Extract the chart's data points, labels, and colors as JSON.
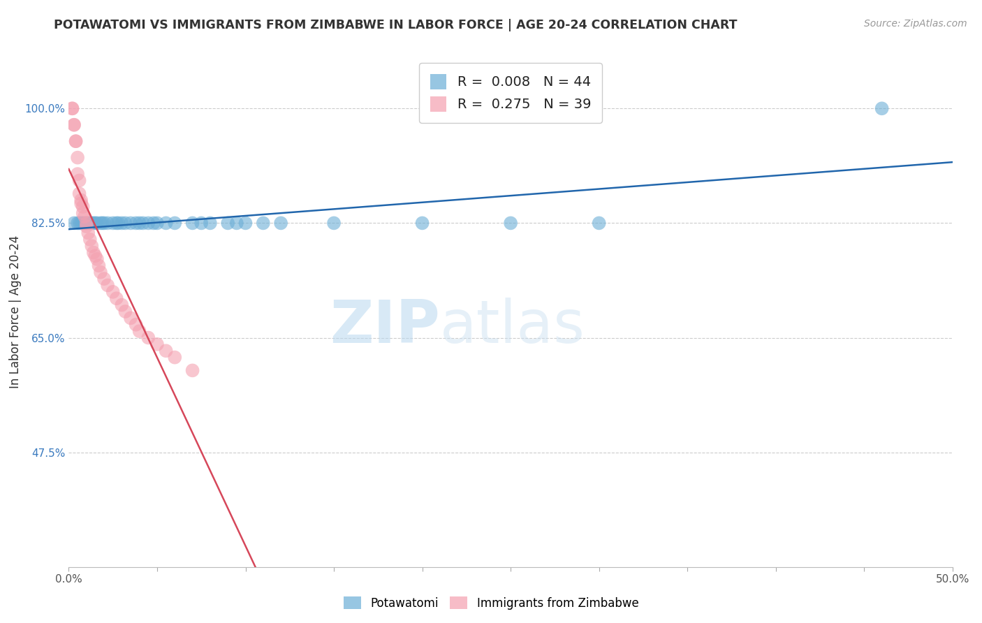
{
  "title": "POTAWATOMI VS IMMIGRANTS FROM ZIMBABWE IN LABOR FORCE | AGE 20-24 CORRELATION CHART",
  "source": "Source: ZipAtlas.com",
  "ylabel": "In Labor Force | Age 20-24",
  "xlim": [
    0.0,
    0.5
  ],
  "ylim": [
    0.3,
    1.08
  ],
  "yticks": [
    0.475,
    0.65,
    0.825,
    1.0
  ],
  "ytick_labels": [
    "47.5%",
    "65.0%",
    "82.5%",
    "100.0%"
  ],
  "xticks": [
    0.0,
    0.05,
    0.1,
    0.15,
    0.2,
    0.25,
    0.3,
    0.35,
    0.4,
    0.45,
    0.5
  ],
  "xtick_labels": [
    "0.0%",
    "",
    "",
    "",
    "",
    "",
    "",
    "",
    "",
    "",
    "50.0%"
  ],
  "blue_r": 0.008,
  "blue_n": 44,
  "pink_r": 0.275,
  "pink_n": 39,
  "blue_color": "#6baed6",
  "pink_color": "#f4a0b0",
  "blue_line_color": "#2166ac",
  "pink_line_color": "#d6475a",
  "legend_label_blue": "Potawatomi",
  "legend_label_pink": "Immigrants from Zimbabwe",
  "watermark_zip": "ZIP",
  "watermark_atlas": "atlas",
  "blue_scatter_x": [
    0.003,
    0.005,
    0.006,
    0.007,
    0.008,
    0.009,
    0.01,
    0.011,
    0.012,
    0.013,
    0.014,
    0.015,
    0.016,
    0.018,
    0.019,
    0.02,
    0.022,
    0.025,
    0.027,
    0.028,
    0.03,
    0.032,
    0.035,
    0.038,
    0.04,
    0.042,
    0.045,
    0.048,
    0.05,
    0.055,
    0.06,
    0.07,
    0.075,
    0.08,
    0.09,
    0.095,
    0.1,
    0.11,
    0.12,
    0.15,
    0.2,
    0.25,
    0.3,
    0.46
  ],
  "blue_scatter_y": [
    0.825,
    0.825,
    0.825,
    0.825,
    0.825,
    0.825,
    0.825,
    0.825,
    0.825,
    0.825,
    0.825,
    0.825,
    0.825,
    0.825,
    0.825,
    0.825,
    0.825,
    0.825,
    0.825,
    0.825,
    0.825,
    0.825,
    0.825,
    0.825,
    0.825,
    0.825,
    0.825,
    0.825,
    0.825,
    0.825,
    0.825,
    0.825,
    0.825,
    0.825,
    0.825,
    0.825,
    0.825,
    0.825,
    0.825,
    0.825,
    0.825,
    0.825,
    0.825,
    1.0
  ],
  "pink_scatter_x": [
    0.002,
    0.002,
    0.003,
    0.003,
    0.004,
    0.004,
    0.005,
    0.005,
    0.006,
    0.006,
    0.007,
    0.007,
    0.008,
    0.008,
    0.009,
    0.01,
    0.01,
    0.011,
    0.012,
    0.013,
    0.014,
    0.015,
    0.016,
    0.017,
    0.018,
    0.02,
    0.022,
    0.025,
    0.027,
    0.03,
    0.032,
    0.035,
    0.038,
    0.04,
    0.045,
    0.05,
    0.055,
    0.06,
    0.07
  ],
  "pink_scatter_y": [
    1.0,
    1.0,
    0.975,
    0.975,
    0.95,
    0.95,
    0.925,
    0.9,
    0.89,
    0.87,
    0.86,
    0.855,
    0.85,
    0.84,
    0.835,
    0.825,
    0.82,
    0.81,
    0.8,
    0.79,
    0.78,
    0.775,
    0.77,
    0.76,
    0.75,
    0.74,
    0.73,
    0.72,
    0.71,
    0.7,
    0.69,
    0.68,
    0.67,
    0.66,
    0.65,
    0.64,
    0.63,
    0.62,
    0.6
  ]
}
